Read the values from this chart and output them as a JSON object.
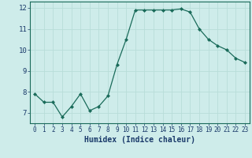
{
  "x": [
    0,
    1,
    2,
    3,
    4,
    5,
    6,
    7,
    8,
    9,
    10,
    11,
    12,
    13,
    14,
    15,
    16,
    17,
    18,
    19,
    20,
    21,
    22,
    23
  ],
  "y": [
    7.9,
    7.5,
    7.5,
    6.8,
    7.3,
    7.9,
    7.1,
    7.3,
    7.8,
    9.3,
    10.5,
    11.9,
    11.9,
    11.9,
    11.9,
    11.9,
    11.95,
    11.8,
    11.0,
    10.5,
    10.2,
    10.0,
    9.6,
    9.4
  ],
  "line_color": "#1a6b5a",
  "marker": "D",
  "markersize": 2.0,
  "linewidth": 0.9,
  "bg_color": "#ceecea",
  "grid_color": "#b8ddd9",
  "xlabel": "Humidex (Indice chaleur)",
  "xlabel_fontsize": 7,
  "xlabel_color": "#1a3a6a",
  "tick_color": "#1a3a6a",
  "ylim": [
    6.5,
    12.3
  ],
  "xlim": [
    -0.5,
    23.5
  ],
  "yticks": [
    7,
    8,
    9,
    10,
    11,
    12
  ],
  "xticks": [
    0,
    1,
    2,
    3,
    4,
    5,
    6,
    7,
    8,
    9,
    10,
    11,
    12,
    13,
    14,
    15,
    16,
    17,
    18,
    19,
    20,
    21,
    22,
    23
  ],
  "tick_fontsize": 5.5,
  "ytick_fontsize": 6.5
}
